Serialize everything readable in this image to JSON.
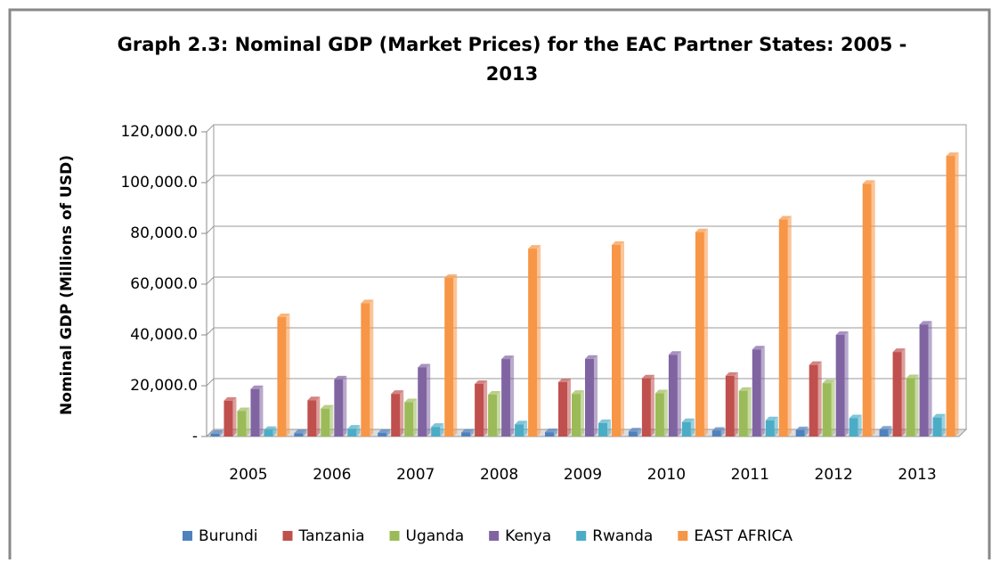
{
  "chart_data": {
    "type": "bar",
    "title": "Graph 2.3: Nominal GDP (Market Prices) for the EAC Partner States: 2005 - 2013",
    "y_label": "Nominal GDP (Millions of USD)",
    "categories": [
      "2005",
      "2006",
      "2007",
      "2008",
      "2009",
      "2010",
      "2011",
      "2012",
      "2013"
    ],
    "series": [
      {
        "name": "Burundi",
        "color": "#4f81bd",
        "values": [
          1100,
          1300,
          1400,
          1600,
          1700,
          2000,
          2300,
          2500,
          2700
        ]
      },
      {
        "name": "Tanzania",
        "color": "#c0504d",
        "values": [
          14100,
          14300,
          16800,
          20700,
          21400,
          22900,
          23900,
          28200,
          33300
        ]
      },
      {
        "name": "Uganda",
        "color": "#9bbb59",
        "values": [
          10000,
          11000,
          13500,
          16500,
          16800,
          17000,
          18000,
          21000,
          23000
        ]
      },
      {
        "name": "Kenya",
        "color": "#8064a2",
        "values": [
          18700,
          22500,
          27200,
          30500,
          30600,
          32200,
          34300,
          40000,
          44100
        ]
      },
      {
        "name": "Rwanda",
        "color": "#4bacc6",
        "values": [
          2600,
          3100,
          3800,
          4800,
          5300,
          5700,
          6400,
          7200,
          7500
        ]
      },
      {
        "name": "EAST AFRICA",
        "color": "#f79646",
        "values": [
          47000,
          52500,
          62500,
          74000,
          75500,
          80500,
          85500,
          99500,
          110500
        ]
      }
    ],
    "ylim": [
      0,
      120000
    ],
    "yticks": [
      {
        "value": 0,
        "label": "-"
      },
      {
        "value": 20000,
        "label": "20,000.0"
      },
      {
        "value": 40000,
        "label": "40,000.0"
      },
      {
        "value": 60000,
        "label": "60,000.0"
      },
      {
        "value": 80000,
        "label": "80,000.0"
      },
      {
        "value": 100000,
        "label": "100,000.0"
      },
      {
        "value": 120000,
        "label": "120,000.0"
      }
    ],
    "grid": true,
    "legend": "bottom"
  }
}
